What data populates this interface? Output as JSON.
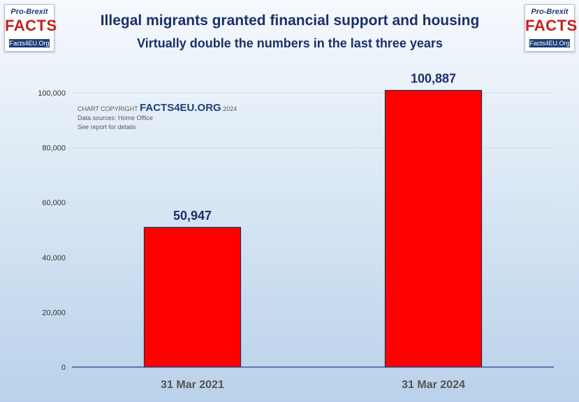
{
  "header": {
    "title": "Illegal migrants granted financial support and housing",
    "subtitle": "Virtually double the numbers in the last three years"
  },
  "logo": {
    "line1": "Pro-Brexit",
    "line2": "FACTS",
    "line3": "Facts4EU.Org"
  },
  "credits": {
    "prefix": "CHART COPYRIGHT",
    "brand": "FACTS4EU.ORG",
    "year": "2024",
    "sources": "Data sources: Home Office",
    "details": "See report for details"
  },
  "colors": {
    "bar": "#ff0000",
    "bar_border": "#1b2f4b",
    "title": "#1b2f6b",
    "axis": "#2b3f8b"
  },
  "chart_data": {
    "type": "bar",
    "categories": [
      "31 Mar 2021",
      "31 Mar 2024"
    ],
    "values": [
      50947,
      100887
    ],
    "data_labels": [
      "50,947",
      "100,887"
    ],
    "ylim": [
      0,
      100000
    ],
    "yticks": [
      0,
      20000,
      40000,
      60000,
      80000,
      100000
    ],
    "ytick_labels": [
      "0",
      "20,000",
      "40,000",
      "60,000",
      "80,000",
      "100,000"
    ],
    "grid": true,
    "legend": false
  }
}
